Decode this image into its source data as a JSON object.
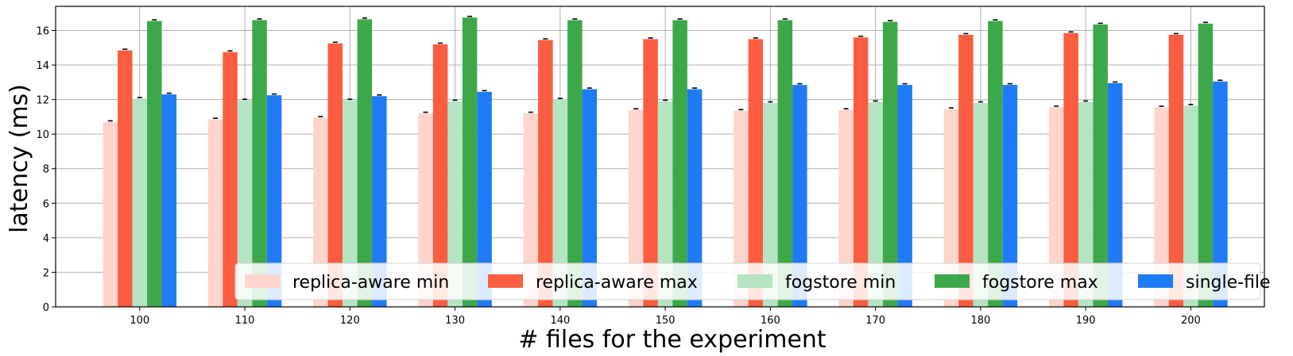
{
  "chart_data": {
    "type": "bar",
    "title": "",
    "xlabel": "# files for the experiment",
    "ylabel": "latency (ms)",
    "categories": [
      "100",
      "110",
      "120",
      "130",
      "140",
      "150",
      "160",
      "170",
      "180",
      "190",
      "200"
    ],
    "ylim": [
      0,
      17.4
    ],
    "yticks": [
      "0",
      "2",
      "4",
      "6",
      "8",
      "10",
      "12",
      "14",
      "16"
    ],
    "grid": true,
    "legend_position": "bottom-right",
    "legend_columns": 5,
    "error_bars": true,
    "series": [
      {
        "name": "replica-aware min",
        "color": "#ffd4cc",
        "values": [
          10.7,
          10.85,
          10.95,
          11.2,
          11.2,
          11.4,
          11.35,
          11.4,
          11.45,
          11.55,
          11.55
        ]
      },
      {
        "name": "replica-aware max",
        "color": "#fc5c3f",
        "values": [
          14.85,
          14.75,
          15.25,
          15.2,
          15.45,
          15.5,
          15.5,
          15.6,
          15.75,
          15.85,
          15.75
        ]
      },
      {
        "name": "fogstore min",
        "color": "#b4e4c2",
        "values": [
          12.05,
          11.95,
          11.95,
          11.9,
          12.0,
          11.9,
          11.8,
          11.85,
          11.8,
          11.85,
          11.65
        ]
      },
      {
        "name": "fogstore max",
        "color": "#3da84a",
        "values": [
          16.55,
          16.6,
          16.65,
          16.75,
          16.6,
          16.6,
          16.6,
          16.5,
          16.55,
          16.35,
          16.4
        ]
      },
      {
        "name": "single-file",
        "color": "#1f7bf5",
        "values": [
          12.3,
          12.25,
          12.2,
          12.45,
          12.6,
          12.6,
          12.85,
          12.85,
          12.85,
          12.95,
          13.05
        ]
      }
    ]
  }
}
